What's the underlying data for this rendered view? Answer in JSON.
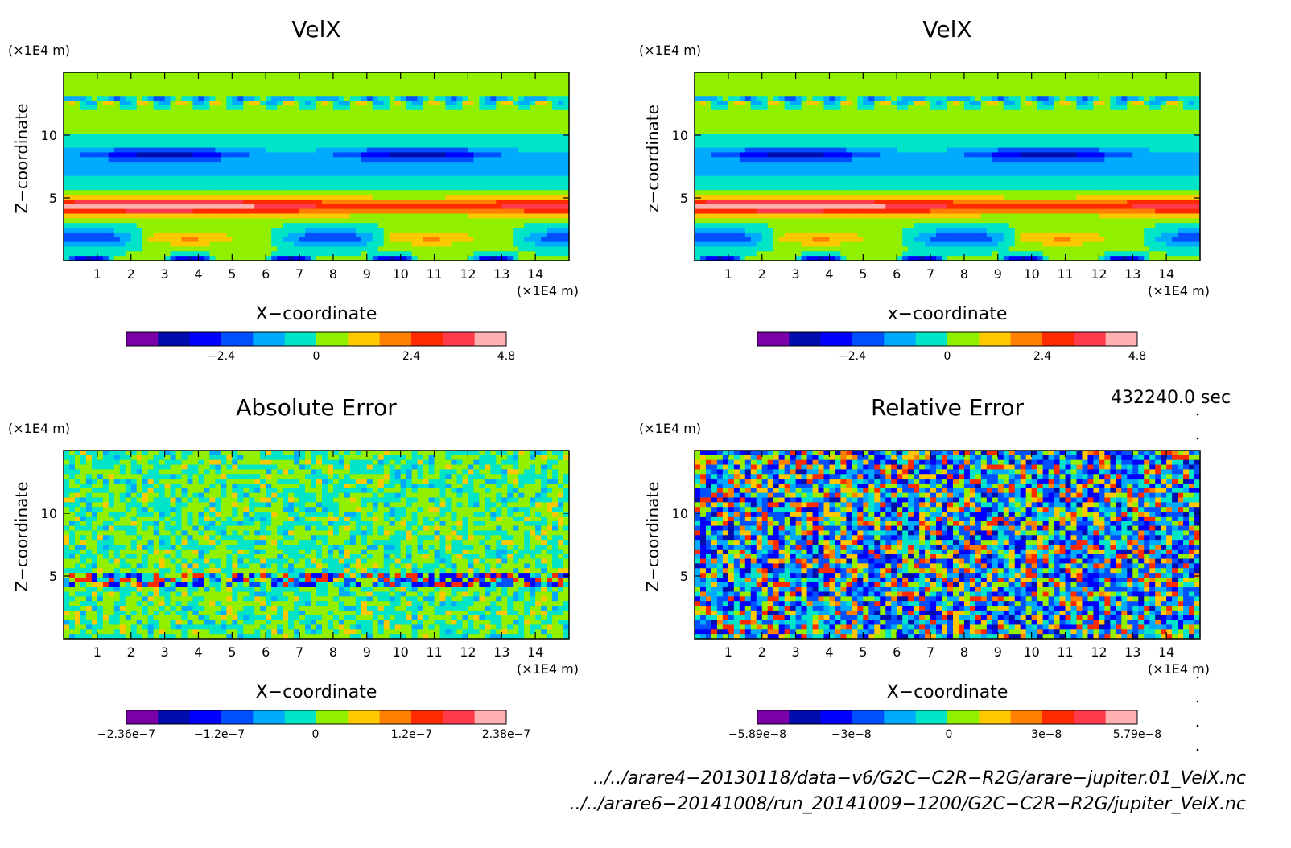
{
  "colors": {
    "palette": [
      "#7a00a8",
      "#000cab",
      "#0000ff",
      "#0050ff",
      "#00aaff",
      "#00e5c8",
      "#90f000",
      "#ffc800",
      "#ff8000",
      "#ff2a00",
      "#ff3a4a",
      "#ffb0b0"
    ]
  },
  "chart_data": [
    {
      "type": "heatmap",
      "title": "VelX",
      "ylabel": "Z−coordinate",
      "xlabel": "X−coordinate",
      "y_unit": "(×1E4 m)",
      "x_unit": "(×1E4 m)",
      "xlim": [
        0,
        15
      ],
      "ylim": [
        0,
        15
      ],
      "x_ticks": [
        "1",
        "2",
        "3",
        "4",
        "5",
        "6",
        "7",
        "8",
        "9",
        "10",
        "11",
        "12",
        "13",
        "14"
      ],
      "y_ticks": [
        "5",
        "10"
      ],
      "colorbar": {
        "labels": [
          "−2.4",
          "0",
          "2.4",
          "4.8"
        ],
        "range": [
          -4.8,
          4.8
        ]
      },
      "pattern": "layered"
    },
    {
      "type": "heatmap",
      "title": "VelX",
      "ylabel": "z−coordinate",
      "xlabel": "x−coordinate",
      "y_unit": "(×1E4 m)",
      "x_unit": "(×1E4 m)",
      "xlim": [
        0,
        15
      ],
      "ylim": [
        0,
        15
      ],
      "x_ticks": [
        "1",
        "2",
        "3",
        "4",
        "5",
        "6",
        "7",
        "8",
        "9",
        "10",
        "11",
        "12",
        "13",
        "14"
      ],
      "y_ticks": [
        "5",
        "10"
      ],
      "colorbar": {
        "labels": [
          "−2.4",
          "0",
          "2.4",
          "4.8"
        ],
        "range": [
          -4.8,
          4.8
        ]
      },
      "pattern": "layered"
    },
    {
      "type": "heatmap",
      "title": "Absolute Error",
      "ylabel": "Z−coordinate",
      "xlabel": "X−coordinate",
      "y_unit": "(×1E4 m)",
      "x_unit": "(×1E4 m)",
      "xlim": [
        0,
        15
      ],
      "ylim": [
        0,
        15
      ],
      "x_ticks": [
        "1",
        "2",
        "3",
        "4",
        "5",
        "6",
        "7",
        "8",
        "9",
        "10",
        "11",
        "12",
        "13",
        "14"
      ],
      "y_ticks": [
        "5",
        "10"
      ],
      "colorbar": {
        "labels": [
          "−2.36e−7",
          "−1.2e−7",
          "0",
          "1.2e−7",
          "2.38e−7"
        ],
        "range": [
          -2.36e-07,
          2.38e-07
        ]
      },
      "pattern": "noise-low"
    },
    {
      "type": "heatmap",
      "title": "Relative Error",
      "ylabel": "Z−coordinate",
      "xlabel": "X−coordinate",
      "y_unit": "(×1E4 m)",
      "x_unit": "(×1E4 m)",
      "xlim": [
        0,
        15
      ],
      "ylim": [
        0,
        15
      ],
      "x_ticks": [
        "1",
        "2",
        "3",
        "4",
        "5",
        "6",
        "7",
        "8",
        "9",
        "10",
        "11",
        "12",
        "13",
        "14"
      ],
      "y_ticks": [
        "5",
        "10"
      ],
      "colorbar": {
        "labels": [
          "−5.89e−8",
          "−3e−8",
          "0",
          "3e−8",
          "5.79e−8"
        ],
        "range": [
          -5.89e-08,
          5.79e-08
        ]
      },
      "pattern": "noise-high"
    }
  ],
  "time_label": "432240.0 sec",
  "footer": {
    "file1": "../../arare4−20130118/data−v6/G2C−C2R−R2G/arare−jupiter.01_VelX.nc",
    "file2": "../../arare6−20141008/run_20141009−1200/G2C−C2R−R2G/jupiter_VelX.nc"
  }
}
